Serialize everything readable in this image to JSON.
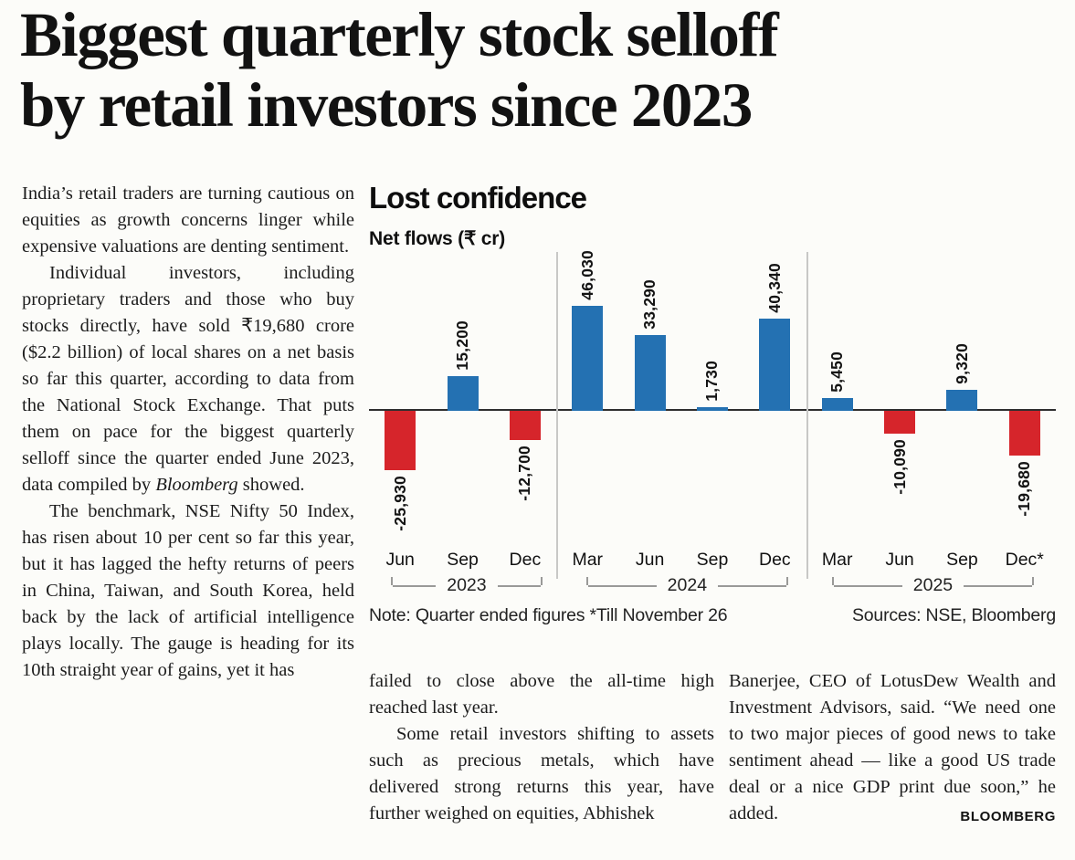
{
  "article": {
    "headline_line1": "Biggest quarterly stock selloff",
    "headline_line2": "by retail investors since 2023",
    "left_column": {
      "p1": "India’s retail traders are turning cautious on equities as growth concerns linger while expensive valuations are denting sentiment.",
      "p2_pre": "Individual investors, including proprietary traders and those who buy stocks directly, have sold ₹19,680 crore ($2.2 billion) of local shares on a net basis so far this quarter, according to data from the National Stock Exchange. That puts them on pace for the biggest quarterly selloff since the quarter ended June 2023, data compiled by ",
      "p2_italic": "Bloomberg",
      "p2_post": " showed.",
      "p3": "The benchmark, NSE Nifty 50 Index, has risen about 10 per cent so far this year, but it has lagged the hefty returns of peers in China, Taiwan, and South Korea, held back by the lack of artificial intelligence plays locally. The gauge is heading for its 10th straight year of gains, yet it has"
    },
    "middle_column": {
      "p1": "failed to close above the all-time high reached last year.",
      "p2": "Some retail investors shifting to assets such as precious metals, which have delivered strong returns this year, have further weighed on equities, Abhishek"
    },
    "right_column": {
      "p1": "Banerjee, CEO of LotusDew Wealth and Investment Advisors, said. “We need one to two major pieces of good news to take sentiment ahead — like a good US trade deal or a nice GDP print due soon,” he added.",
      "byline": "BLOOMBERG"
    }
  },
  "chart": {
    "title": "Lost confidence",
    "subtitle": "Net flows (₹ cr)",
    "note": "Note: Quarter ended figures *Till November 26",
    "sources": "Sources: NSE, Bloomberg",
    "positive_color": "#2471b2",
    "negative_color": "#d6252b"
  },
  "chart_data": {
    "type": "bar",
    "title": "Lost confidence",
    "ylabel": "Net flows (₹ cr)",
    "categories": [
      "Jun",
      "Sep",
      "Dec",
      "Mar",
      "Jun",
      "Sep",
      "Dec",
      "Mar",
      "Jun",
      "Sep",
      "Dec*"
    ],
    "values": [
      -25930,
      15200,
      -12700,
      46030,
      33290,
      1730,
      40340,
      5450,
      -10090,
      9320,
      -19680
    ],
    "labels": [
      "-25,930",
      "15,200",
      "-12,700",
      "46,030",
      "33,290",
      "1,730",
      "40,340",
      "5,450",
      "-10,090",
      "9,320",
      "-19,680"
    ],
    "year_groups": [
      {
        "label": "2023",
        "span": 3
      },
      {
        "label": "2024",
        "span": 4
      },
      {
        "label": "2025",
        "span": 4
      }
    ],
    "ylim": [
      -30000,
      50000
    ],
    "grid": false,
    "legend": "none",
    "note": "Note: Quarter ended figures *Till November 26",
    "sources": "Sources: NSE, Bloomberg"
  }
}
